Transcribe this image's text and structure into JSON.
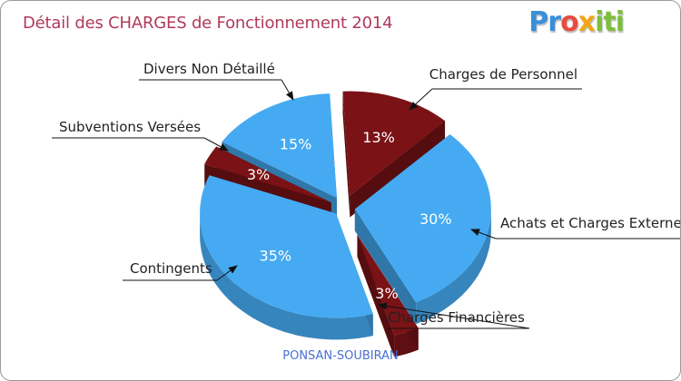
{
  "header": {
    "title": "Détail des CHARGES de Fonctionnement 2014",
    "logo_text": "Proxiti"
  },
  "footer": {
    "subtitle": "PONSAN-SOUBIRAN"
  },
  "colors": {
    "blue": "#45aaf2",
    "dark_red": "#7a1216",
    "title": "#b03a5b"
  },
  "chart_data": {
    "type": "pie",
    "title": "Détail des CHARGES de Fonctionnement 2014",
    "subtitle": "PONSAN-SOUBIRAN",
    "slices": [
      {
        "name": "Charges de Personnel",
        "value": 13,
        "label": "13%",
        "color": "#7a1216"
      },
      {
        "name": "Achats et Charges Externes",
        "value": 30,
        "label": "30%",
        "color": "#45aaf2"
      },
      {
        "name": "Charges Financières",
        "value": 3,
        "label": "3%",
        "color": "#7a1216"
      },
      {
        "name": "Contingents",
        "value": 35,
        "label": "35%",
        "color": "#45aaf2"
      },
      {
        "name": "Subventions Versées",
        "value": 3,
        "label": "3%",
        "color": "#7a1216"
      },
      {
        "name": "Divers Non Détaillé",
        "value": 15,
        "label": "15%",
        "color": "#45aaf2"
      }
    ]
  }
}
